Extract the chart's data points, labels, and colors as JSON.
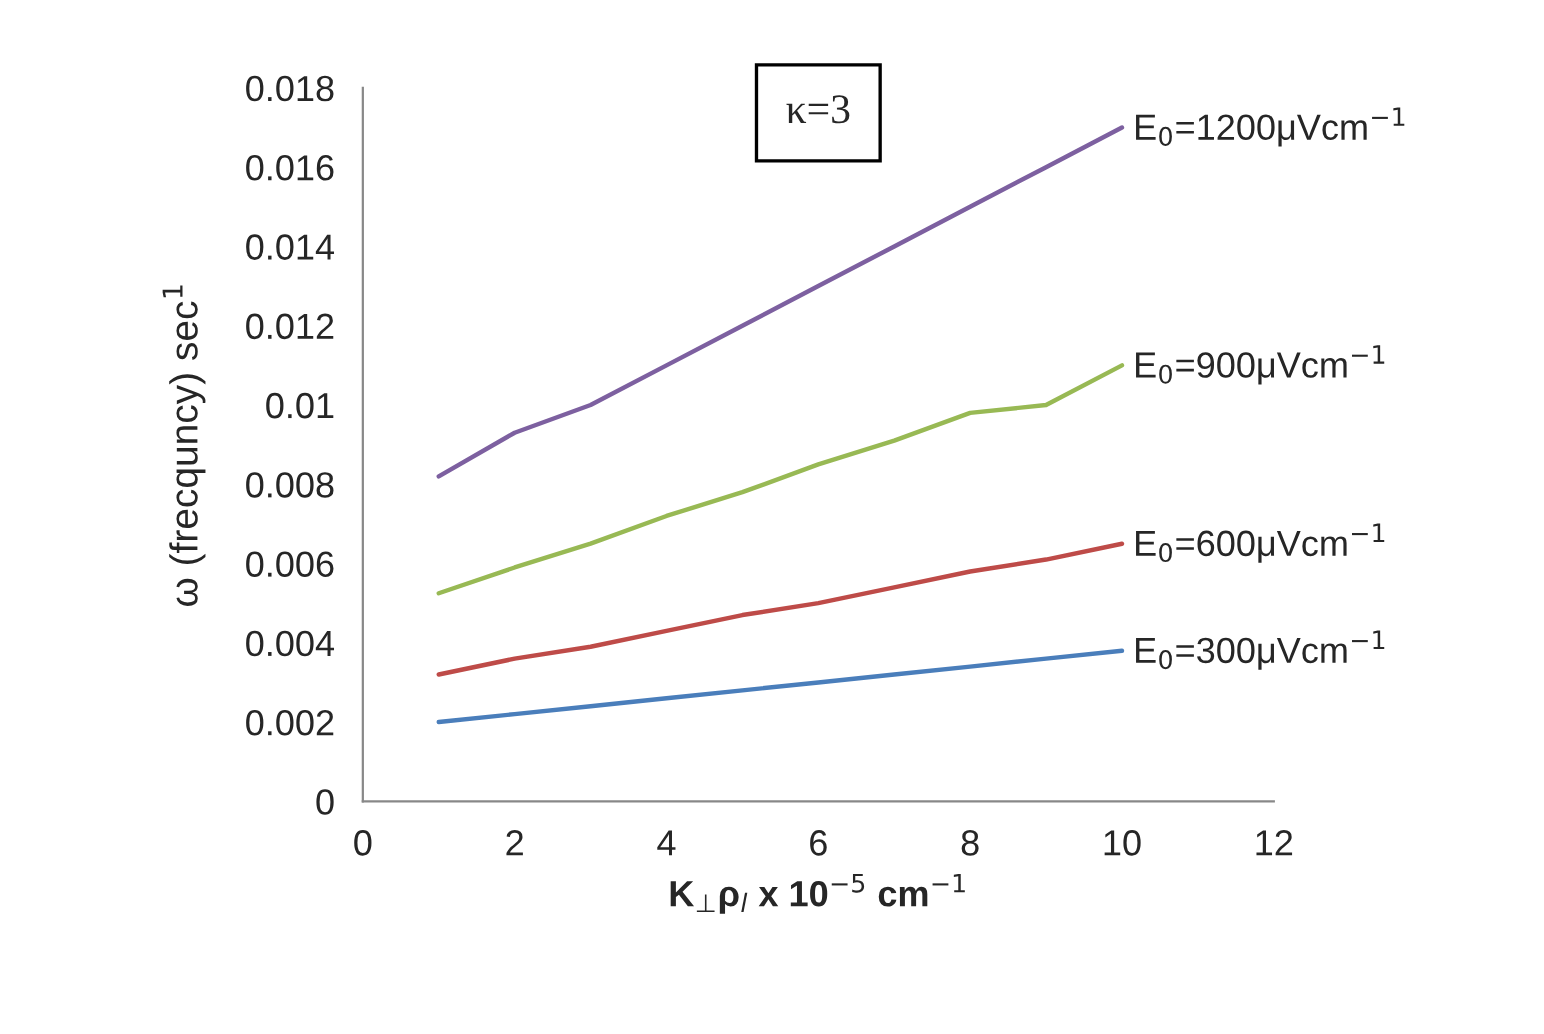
{
  "chart_data": {
    "type": "line",
    "xlabel": "K$_{⊥}$ρ$_{l}$ x 10$^{−5}$ cm$^{−1}$",
    "ylabel": "ω (frecquncy) sec$^{1}$",
    "annotations": [
      "κ=3"
    ],
    "x": [
      1,
      2,
      3,
      4,
      5,
      6,
      7,
      8,
      9,
      10
    ],
    "series": [
      {
        "name": "E$_{0}$=300μVcm$^{−1}$",
        "color": "#4a7ebb",
        "values": [
          0.002,
          0.0022,
          0.0024,
          0.0026,
          0.0028,
          0.003,
          0.0032,
          0.0034,
          0.0036,
          0.0038
        ]
      },
      {
        "name": "E$_{0}$=600μVcm$^{−1}$",
        "color": "#be4b48",
        "values": [
          0.0032,
          0.0036,
          0.0039,
          0.0043,
          0.0047,
          0.005,
          0.0054,
          0.0058,
          0.0061,
          0.0065
        ]
      },
      {
        "name": "E$_{0}$=900μVcm$^{−1}$",
        "color": "#98b954",
        "values": [
          0.00525,
          0.0059,
          0.0065,
          0.0072,
          0.0078,
          0.0085,
          0.0091,
          0.0098,
          0.01,
          0.011
        ]
      },
      {
        "name": "E$_{0}$=1200μVcm$^{−1}$",
        "color": "#7d60a0",
        "values": [
          0.0082,
          0.0093,
          0.01,
          0.011,
          0.012,
          0.013,
          0.014,
          0.015,
          0.016,
          0.017
        ]
      }
    ],
    "xlim": [
      0,
      12
    ],
    "xticks": [
      0,
      2,
      4,
      6,
      8,
      10,
      12
    ],
    "ylim": [
      0,
      0.018
    ],
    "yticks": [
      0,
      0.002,
      0.004,
      0.006,
      0.008,
      0.01,
      0.012,
      0.014,
      0.016,
      0.018
    ],
    "grid": false,
    "legend": false,
    "marker": "none",
    "line_style": "solid"
  }
}
